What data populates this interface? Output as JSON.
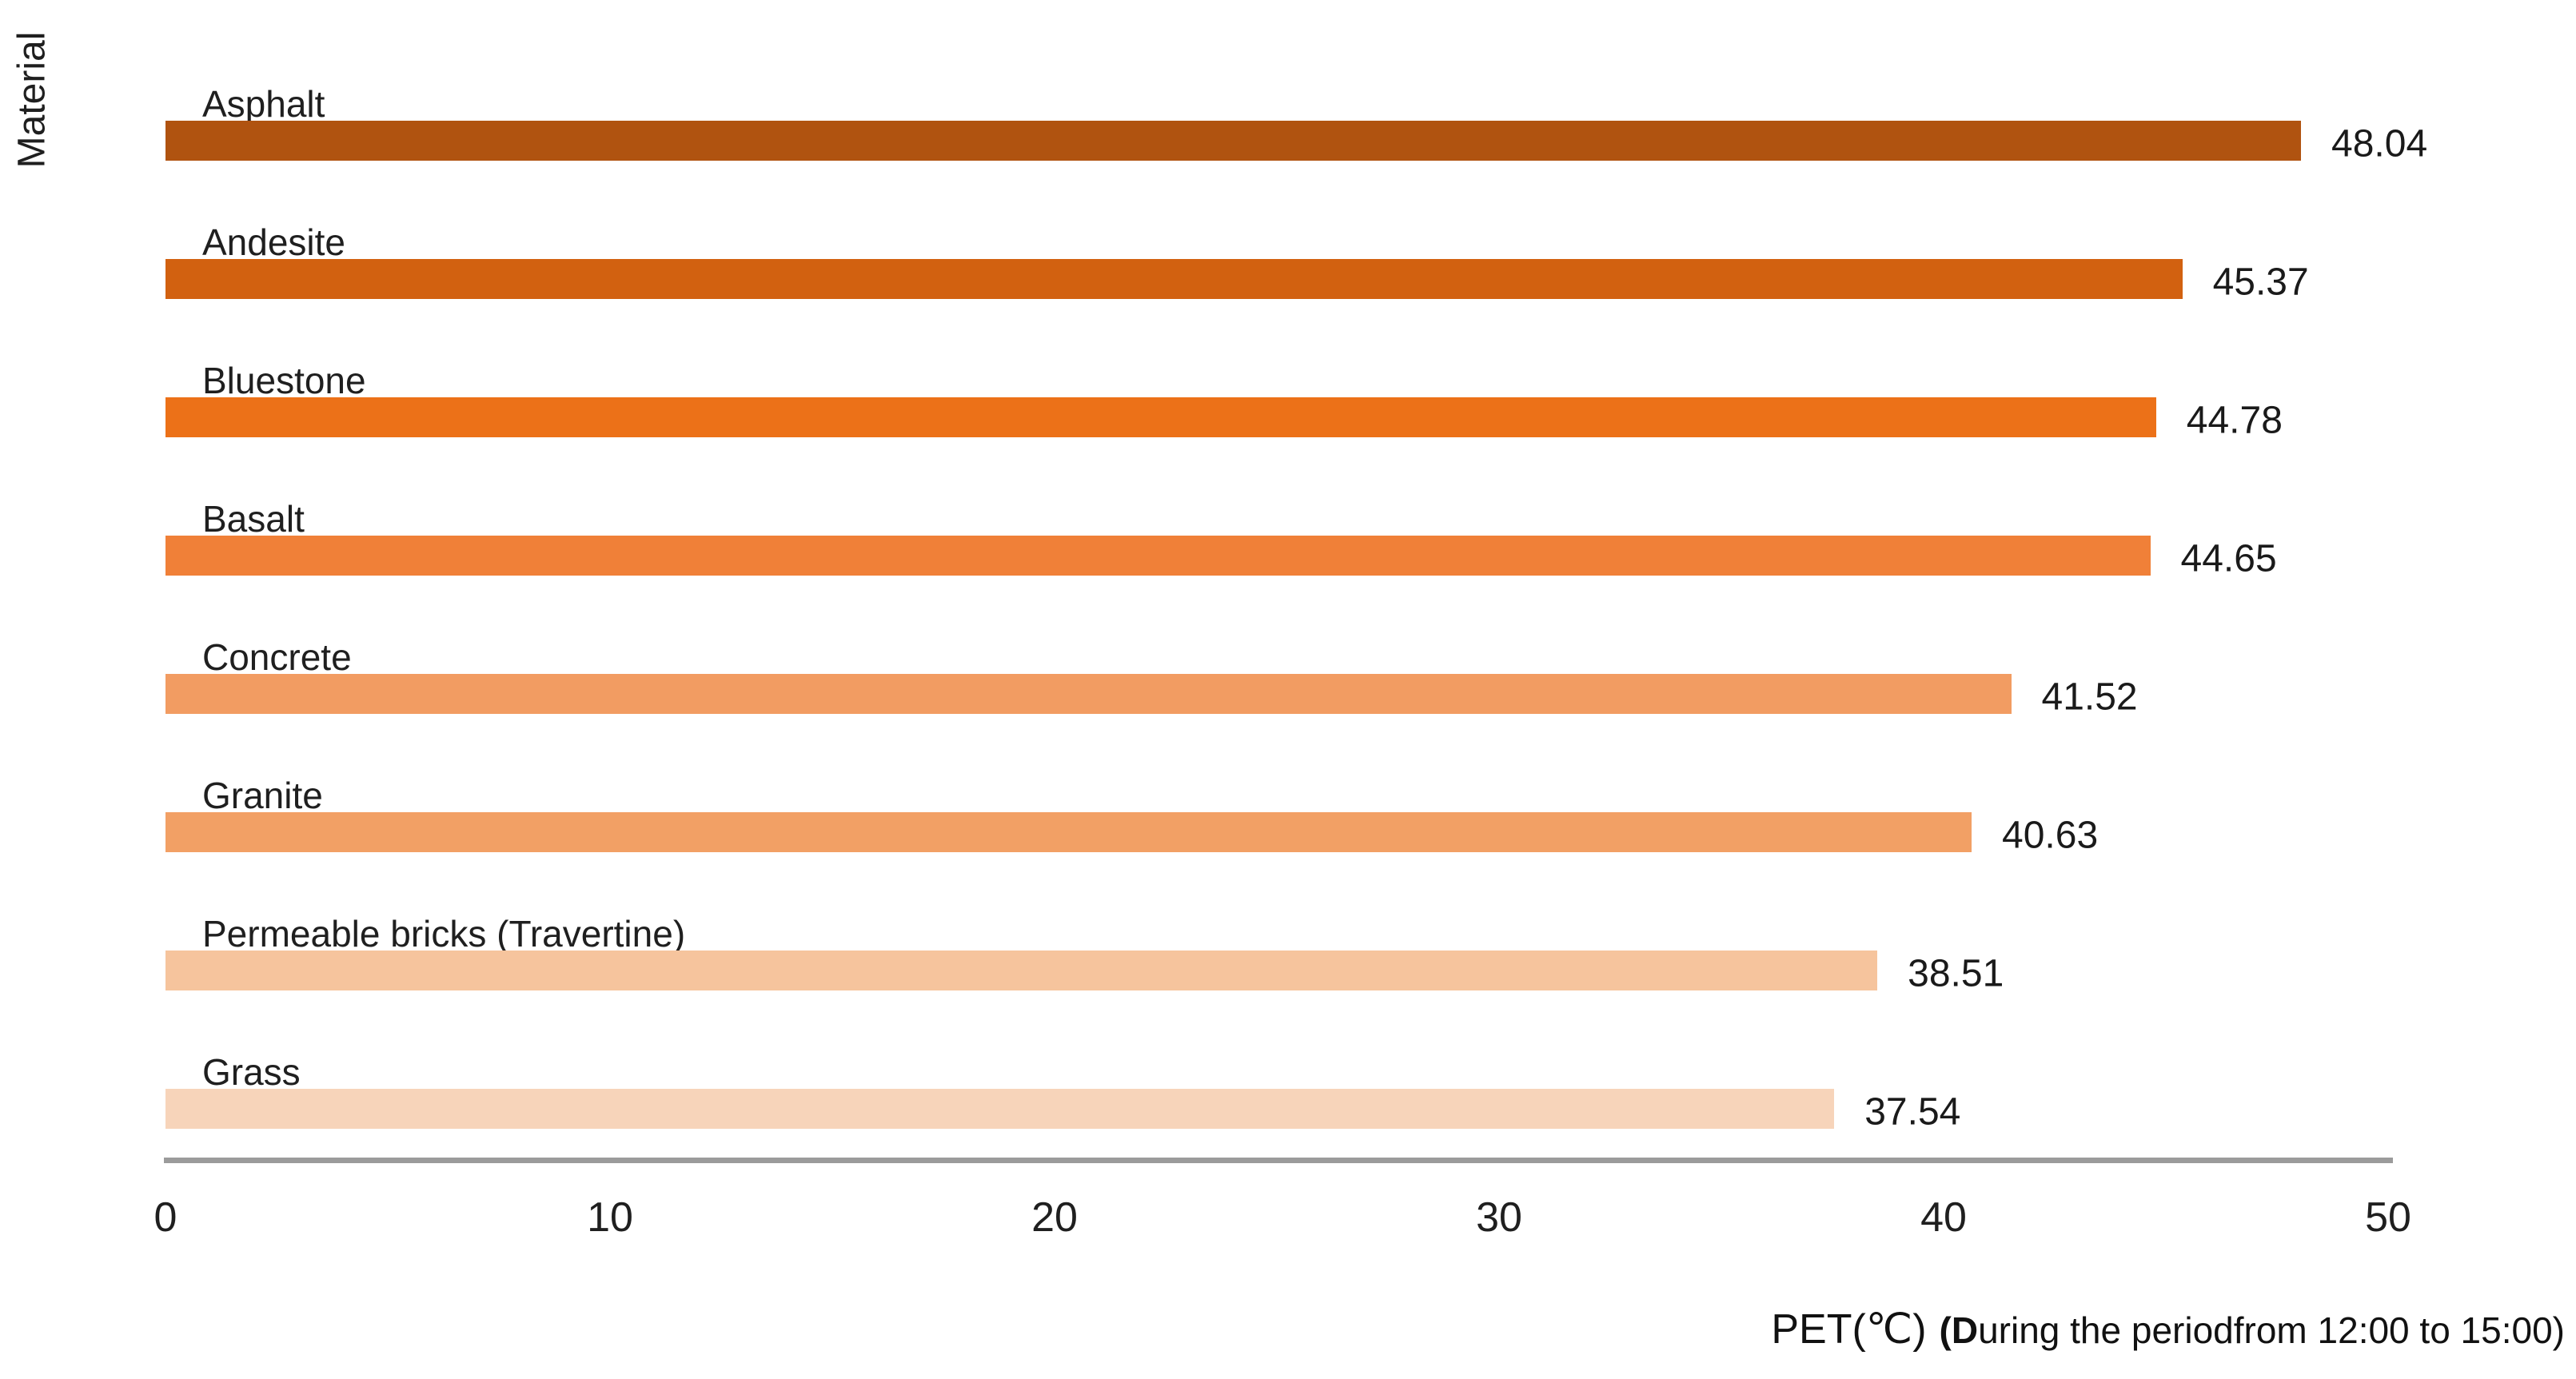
{
  "chart_data": {
    "type": "bar",
    "orientation": "horizontal",
    "title": "",
    "ylabel": "Material",
    "xlabel": "PET(℃)",
    "xlabel_note": "(During the periodfrom 12:00 to 15:00)",
    "categories": [
      "Asphalt",
      "Andesite",
      "Bluestone",
      "Basalt",
      "Concrete",
      "Granite",
      "Permeable bricks (Travertine)",
      "Grass"
    ],
    "values": [
      48.04,
      45.37,
      44.78,
      44.65,
      41.52,
      40.63,
      38.51,
      37.54
    ],
    "value_labels": [
      "48.04",
      "45.37",
      "44.78",
      "44.65",
      "41.52",
      "40.63",
      "38.51",
      "37.54"
    ],
    "bar_colors": [
      "#b05310",
      "#d26110",
      "#ec7118",
      "#f08038",
      "#f29c62",
      "#f2a065",
      "#f6c49d",
      "#f7d4ba"
    ],
    "xlim": [
      0,
      50
    ],
    "xticks": [
      0,
      10,
      20,
      30,
      40,
      50
    ],
    "grid": false,
    "legend": "none",
    "value_labels_shown": true,
    "axis_line_color": "#9b9b9b",
    "text_color": "#1f1f1f",
    "background_color": "#ffffff"
  }
}
